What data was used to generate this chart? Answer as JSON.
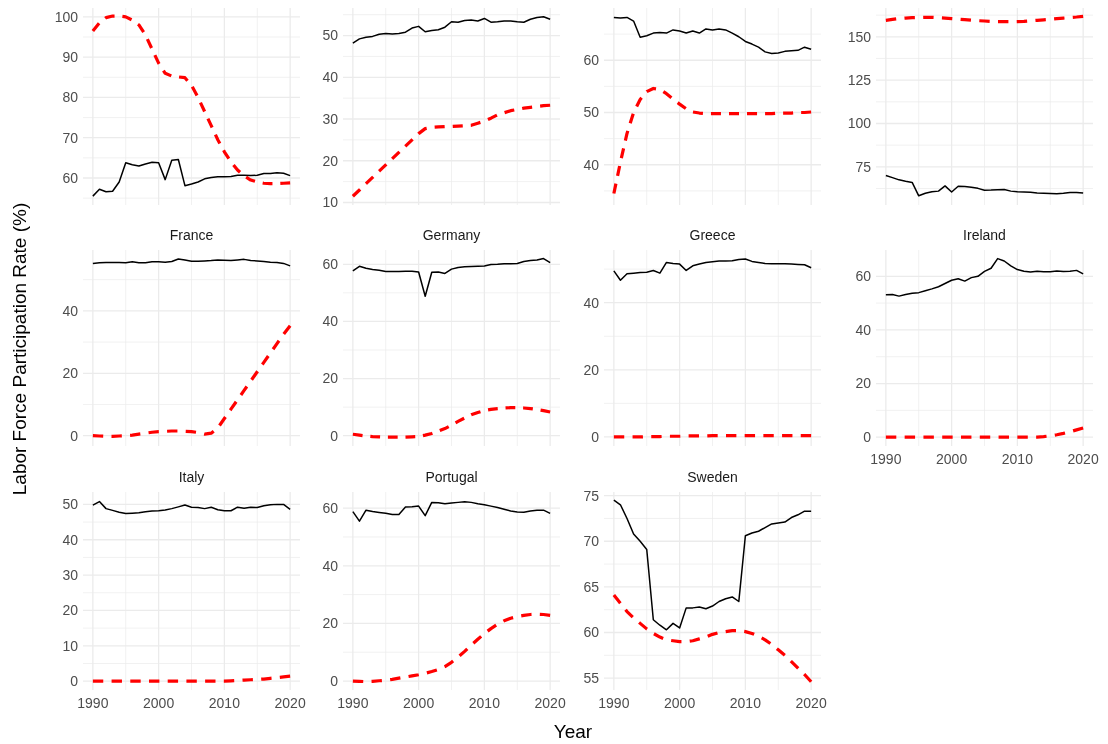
{
  "chart_data": [
    {
      "type": "line",
      "x": [
        1990,
        1991,
        1992,
        1993,
        1994,
        1995,
        1996,
        1997,
        1998,
        1999,
        2000,
        2001,
        2002,
        2003,
        2004,
        2005,
        2006,
        2007,
        2008,
        2009,
        2010,
        2011,
        2012,
        2013,
        2014,
        2015,
        2016,
        2017,
        2018,
        2019,
        2020
      ],
      "xlim": [
        1988.5,
        2021.5
      ],
      "xticks": [
        1990,
        {
          "value": 1995,
          "label": null
        },
        2000,
        {
          "value": 2005,
          "label": null
        },
        2010,
        {
          "value": 2015,
          "label": null
        },
        2020
      ],
      "ylim": [
        53.3,
        102.2
      ],
      "yticks": [
        {
          "value": 55,
          "label": null
        },
        60,
        {
          "value": 65,
          "label": null
        },
        70,
        {
          "value": 75,
          "label": null
        },
        80,
        {
          "value": 85,
          "label": null
        },
        90,
        {
          "value": 95,
          "label": null
        },
        100
      ],
      "grid": true,
      "tick_labels": "y",
      "ylabel": "Labor Force Participation Rate (%)",
      "series": [
        {
          "color": "#000000",
          "line_style": "solid",
          "values": [
            55.5,
            57.2,
            56.6,
            56.7,
            59,
            63.8,
            63.3,
            63,
            63.5,
            63.9,
            63.8,
            59.6,
            64.4,
            64.6,
            58.1,
            58.5,
            59,
            59.8,
            60.1,
            60.3,
            60.3,
            60.4,
            60.7,
            60.7,
            60.6,
            60.7,
            61.1,
            61.1,
            61.3,
            61.2,
            60.6
          ]
        },
        {
          "color": "#ff0000",
          "line_style": "dashed",
          "values": [
            96.5,
            98.5,
            99.8,
            100.2,
            100.2,
            100,
            99.2,
            98,
            95.5,
            92,
            88.5,
            86,
            85.3,
            85.1,
            84.9,
            83,
            80,
            76.5,
            73,
            69.5,
            66.5,
            64,
            62,
            60.5,
            59.5,
            59,
            58.7,
            58.6,
            58.6,
            58.7,
            58.8
          ]
        }
      ]
    },
    {
      "type": "line",
      "x": [
        1990,
        1991,
        1992,
        1993,
        1994,
        1995,
        1996,
        1997,
        1998,
        1999,
        2000,
        2001,
        2002,
        2003,
        2004,
        2005,
        2006,
        2007,
        2008,
        2009,
        2010,
        2011,
        2012,
        2013,
        2014,
        2015,
        2016,
        2017,
        2018,
        2019,
        2020
      ],
      "xlim": [
        1988.5,
        2021.5
      ],
      "xticks": [
        1990,
        {
          "value": 1995,
          "label": null
        },
        2000,
        {
          "value": 2005,
          "label": null
        },
        2010,
        {
          "value": 2015,
          "label": null
        },
        2020
      ],
      "ylim": [
        9.4,
        56.6
      ],
      "yticks": [
        10,
        {
          "value": 15,
          "label": null
        },
        20,
        {
          "value": 25,
          "label": null
        },
        30,
        {
          "value": 35,
          "label": null
        },
        40,
        {
          "value": 45,
          "label": null
        },
        50,
        {
          "value": 55,
          "label": null
        }
      ],
      "grid": true,
      "tick_labels": "y",
      "series": [
        {
          "color": "#000000",
          "line_style": "solid",
          "values": [
            48.2,
            49.2,
            49.6,
            49.8,
            50.3,
            50.5,
            50.4,
            50.5,
            50.8,
            51.8,
            52.2,
            50.9,
            51.2,
            51.4,
            52,
            53.3,
            53.2,
            53.6,
            53.7,
            53.5,
            54.1,
            53.2,
            53.3,
            53.5,
            53.5,
            53.3,
            53.2,
            53.9,
            54.3,
            54.5,
            53.9
          ]
        },
        {
          "color": "#ff0000",
          "line_style": "dashed",
          "values": [
            11.5,
            13,
            14.5,
            16,
            17.5,
            19,
            20.5,
            22,
            23.5,
            25,
            26.5,
            27.7,
            28,
            28.1,
            28.2,
            28.2,
            28.3,
            28.4,
            28.5,
            29,
            29.5,
            30.2,
            31,
            31.5,
            32,
            32.3,
            32.6,
            32.8,
            33,
            33.2,
            33.3
          ]
        }
      ]
    },
    {
      "type": "line",
      "x": [
        1990,
        1991,
        1992,
        1993,
        1994,
        1995,
        1996,
        1997,
        1998,
        1999,
        2000,
        2001,
        2002,
        2003,
        2004,
        2005,
        2006,
        2007,
        2008,
        2009,
        2010,
        2011,
        2012,
        2013,
        2014,
        2015,
        2016,
        2017,
        2018,
        2019,
        2020
      ],
      "xlim": [
        1988.5,
        2021.5
      ],
      "xticks": [
        1990,
        {
          "value": 1995,
          "label": null
        },
        2000,
        {
          "value": 2005,
          "label": null
        },
        2010,
        {
          "value": 2015,
          "label": null
        },
        2020
      ],
      "ylim": [
        32.3,
        70
      ],
      "yticks": [
        {
          "value": 35,
          "label": null
        },
        40,
        {
          "value": 45,
          "label": null
        },
        50,
        {
          "value": 55,
          "label": null
        },
        60,
        {
          "value": 65,
          "label": null
        }
      ],
      "grid": true,
      "tick_labels": "y",
      "series": [
        {
          "color": "#000000",
          "line_style": "solid",
          "values": [
            68.2,
            68.1,
            68.2,
            67.5,
            64.4,
            64.7,
            65.2,
            65.3,
            65.2,
            65.8,
            65.6,
            65.2,
            65.6,
            65.2,
            66,
            65.8,
            66,
            65.8,
            65.2,
            64.5,
            63.6,
            63.1,
            62.5,
            61.6,
            61.3,
            61.4,
            61.7,
            61.8,
            61.9,
            62.5,
            62.1
          ]
        },
        {
          "color": "#ff0000",
          "line_style": "dashed",
          "values": [
            34.5,
            40.5,
            46,
            50,
            52.5,
            54,
            54.6,
            54.4,
            53.6,
            52.6,
            51.6,
            50.7,
            50.1,
            49.9,
            49.8,
            49.8,
            49.8,
            49.8,
            49.8,
            49.8,
            49.8,
            49.8,
            49.8,
            49.8,
            49.8,
            49.9,
            49.9,
            49.9,
            50,
            50,
            50.1
          ]
        }
      ]
    },
    {
      "type": "line",
      "x": [
        1990,
        1991,
        1992,
        1993,
        1994,
        1995,
        1996,
        1997,
        1998,
        1999,
        2000,
        2001,
        2002,
        2003,
        2004,
        2005,
        2006,
        2007,
        2008,
        2009,
        2010,
        2011,
        2012,
        2013,
        2014,
        2015,
        2016,
        2017,
        2018,
        2019,
        2020
      ],
      "xlim": [
        1988.5,
        2021.5
      ],
      "xticks": [
        1990,
        {
          "value": 1995,
          "label": null
        },
        2000,
        {
          "value": 2005,
          "label": null
        },
        2010,
        {
          "value": 2015,
          "label": null
        },
        2020
      ],
      "ylim": [
        53,
        166.6
      ],
      "yticks": [
        {
          "value": 62.5,
          "label": null
        },
        75,
        {
          "value": 87.5,
          "label": null
        },
        100,
        {
          "value": 112.5,
          "label": null
        },
        125,
        {
          "value": 137.5,
          "label": null
        },
        150,
        {
          "value": 162.5,
          "label": null
        }
      ],
      "grid": true,
      "tick_labels": "y",
      "series": [
        {
          "color": "#000000",
          "line_style": "solid",
          "values": [
            70,
            68.8,
            67.5,
            66.7,
            66,
            58.3,
            59.8,
            60.7,
            61,
            64,
            60.5,
            63.8,
            63.7,
            63.2,
            62.6,
            61.5,
            61.6,
            61.8,
            61.9,
            61,
            60.6,
            60.5,
            60.3,
            59.9,
            59.8,
            59.7,
            59.5,
            59.8,
            60.2,
            60.2,
            59.9
          ]
        },
        {
          "color": "#ff0000",
          "line_style": "dashed",
          "values": [
            159.5,
            160,
            160.5,
            160.8,
            161,
            161.1,
            161.2,
            161.2,
            161,
            160.8,
            160.5,
            160.2,
            159.9,
            159.6,
            159.3,
            159.1,
            158.9,
            158.8,
            158.7,
            158.7,
            158.8,
            158.9,
            159.2,
            159.5,
            159.8,
            160.1,
            160.5,
            160.8,
            161.1,
            161.4,
            161.8
          ]
        }
      ]
    },
    {
      "type": "line",
      "title": "France",
      "x": [
        1990,
        1991,
        1992,
        1993,
        1994,
        1995,
        1996,
        1997,
        1998,
        1999,
        2000,
        2001,
        2002,
        2003,
        2004,
        2005,
        2006,
        2007,
        2008,
        2009,
        2010,
        2011,
        2012,
        2013,
        2014,
        2015,
        2016,
        2017,
        2018,
        2019,
        2020
      ],
      "xlim": [
        1988.5,
        2021.5
      ],
      "xticks": [
        1990,
        {
          "value": 1995,
          "label": null
        },
        2000,
        {
          "value": 2005,
          "label": null
        },
        2010,
        {
          "value": 2015,
          "label": null
        },
        2020
      ],
      "ylim": [
        -3.3,
        59.5
      ],
      "yticks": [
        0,
        {
          "value": 10,
          "label": null
        },
        20,
        {
          "value": 30,
          "label": null
        },
        40,
        {
          "value": 50,
          "label": null
        }
      ],
      "grid": true,
      "tick_labels": "y",
      "series": [
        {
          "color": "#000000",
          "line_style": "solid",
          "values": [
            55.2,
            55.4,
            55.5,
            55.5,
            55.5,
            55.4,
            55.7,
            55.4,
            55.4,
            55.7,
            55.7,
            55.6,
            55.8,
            56.6,
            56.3,
            55.9,
            55.9,
            56,
            56.1,
            56.3,
            56.2,
            56.1,
            56.3,
            56.5,
            56.1,
            56,
            55.8,
            55.6,
            55.5,
            55.2,
            54.4
          ]
        },
        {
          "color": "#ff0000",
          "line_style": "dashed",
          "values": [
            0,
            -0.1,
            -0.2,
            -0.2,
            -0.1,
            0,
            0.2,
            0.5,
            0.8,
            1.1,
            1.3,
            1.4,
            1.5,
            1.5,
            1.4,
            1.3,
            1,
            0.5,
            0.8,
            2.5,
            5.5,
            8.5,
            11.5,
            14.5,
            17.5,
            20.5,
            23.5,
            26.5,
            29.5,
            32.5,
            35.2
          ]
        }
      ]
    },
    {
      "type": "line",
      "title": "Germany",
      "x": [
        1990,
        1991,
        1992,
        1993,
        1994,
        1995,
        1996,
        1997,
        1998,
        1999,
        2000,
        2001,
        2002,
        2003,
        2004,
        2005,
        2006,
        2007,
        2008,
        2009,
        2010,
        2011,
        2012,
        2013,
        2014,
        2015,
        2016,
        2017,
        2018,
        2019,
        2020
      ],
      "xlim": [
        1988.5,
        2021.5
      ],
      "xticks": [
        1990,
        {
          "value": 1995,
          "label": null
        },
        2000,
        {
          "value": 2005,
          "label": null
        },
        2010,
        {
          "value": 2015,
          "label": null
        },
        2020
      ],
      "ylim": [
        -3.6,
        65
      ],
      "yticks": [
        0,
        {
          "value": 10,
          "label": null
        },
        20,
        {
          "value": 30,
          "label": null
        },
        40,
        {
          "value": 50,
          "label": null
        },
        60
      ],
      "grid": true,
      "tick_labels": "y",
      "series": [
        {
          "color": "#000000",
          "line_style": "solid",
          "values": [
            57.7,
            59.3,
            58.6,
            58.2,
            57.9,
            57.5,
            57.5,
            57.5,
            57.6,
            57.6,
            57.3,
            48.8,
            57.2,
            57.3,
            56.8,
            58.3,
            58.9,
            59.1,
            59.2,
            59.3,
            59.4,
            59.9,
            60,
            60.2,
            60.2,
            60.3,
            61,
            61.3,
            61.5,
            62,
            60.6
          ]
        },
        {
          "color": "#ff0000",
          "line_style": "dashed",
          "values": [
            0.5,
            0.2,
            -0.1,
            -0.3,
            -0.4,
            -0.5,
            -0.5,
            -0.5,
            -0.5,
            -0.4,
            -0.3,
            0.2,
            0.8,
            1.6,
            2.5,
            3.7,
            5,
            6.2,
            7.3,
            8.1,
            8.8,
            9.2,
            9.5,
            9.7,
            9.8,
            9.8,
            9.7,
            9.5,
            9.2,
            8.8,
            8.3
          ]
        }
      ]
    },
    {
      "type": "line",
      "title": "Greece",
      "x": [
        1990,
        1991,
        1992,
        1993,
        1994,
        1995,
        1996,
        1997,
        1998,
        1999,
        2000,
        2001,
        2002,
        2003,
        2004,
        2005,
        2006,
        2007,
        2008,
        2009,
        2010,
        2011,
        2012,
        2013,
        2014,
        2015,
        2016,
        2017,
        2018,
        2019,
        2020
      ],
      "xlim": [
        1988.5,
        2021.5
      ],
      "xticks": [
        1990,
        {
          "value": 1995,
          "label": null
        },
        2000,
        {
          "value": 2005,
          "label": null
        },
        2010,
        {
          "value": 2015,
          "label": null
        },
        2020
      ],
      "ylim": [
        -2.7,
        55.7
      ],
      "yticks": [
        0,
        {
          "value": 10,
          "label": null
        },
        20,
        {
          "value": 30,
          "label": null
        },
        40,
        {
          "value": 50,
          "label": null
        }
      ],
      "grid": true,
      "tick_labels": "y",
      "series": [
        {
          "color": "#000000",
          "line_style": "solid",
          "values": [
            49.5,
            46.7,
            48.6,
            48.8,
            49,
            49.1,
            49.6,
            48.8,
            52,
            51.7,
            51.5,
            49.6,
            51,
            51.5,
            52,
            52.2,
            52.4,
            52.4,
            52.5,
            52.9,
            53,
            52.3,
            52,
            51.7,
            51.6,
            51.6,
            51.6,
            51.5,
            51.4,
            51.3,
            50.4
          ]
        },
        {
          "color": "#ff0000",
          "line_style": "dashed",
          "values": [
            0,
            0,
            0,
            0,
            0,
            0.1,
            0.1,
            0.1,
            0.2,
            0.2,
            0.2,
            0.3,
            0.3,
            0.3,
            0.3,
            0.4,
            0.4,
            0.4,
            0.4,
            0.4,
            0.4,
            0.4,
            0.4,
            0.4,
            0.4,
            0.4,
            0.4,
            0.4,
            0.4,
            0.4,
            0.4
          ]
        }
      ]
    },
    {
      "type": "line",
      "title": "Ireland",
      "x": [
        1990,
        1991,
        1992,
        1993,
        1994,
        1995,
        1996,
        1997,
        1998,
        1999,
        2000,
        2001,
        2002,
        2003,
        2004,
        2005,
        2006,
        2007,
        2008,
        2009,
        2010,
        2011,
        2012,
        2013,
        2014,
        2015,
        2016,
        2017,
        2018,
        2019,
        2020
      ],
      "xlim": [
        1988.5,
        2021.5
      ],
      "xticks": [
        1990,
        {
          "value": 1995,
          "label": null
        },
        2000,
        {
          "value": 2005,
          "label": null
        },
        2010,
        {
          "value": 2015,
          "label": null
        },
        2020
      ],
      "ylim": [
        -3.3,
        69.8
      ],
      "yticks": [
        0,
        {
          "value": 10,
          "label": null
        },
        20,
        {
          "value": 30,
          "label": null
        },
        40,
        {
          "value": 50,
          "label": null
        },
        60
      ],
      "grid": true,
      "series": [
        {
          "color": "#000000",
          "line_style": "solid",
          "values": [
            53.1,
            53.2,
            52.6,
            53.2,
            53.7,
            53.9,
            54.6,
            55.3,
            56.1,
            57.3,
            58.5,
            59.1,
            58.2,
            59.5,
            60,
            61.8,
            63,
            66.6,
            65.7,
            63.9,
            62.5,
            61.9,
            61.6,
            61.9,
            61.7,
            61.7,
            62,
            61.8,
            61.9,
            62.2,
            60.9
          ]
        },
        {
          "color": "#ff0000",
          "line_style": "dashed",
          "values": [
            0,
            0,
            0,
            0,
            0,
            0,
            0,
            0,
            0,
            0,
            0,
            0,
            0,
            0,
            0,
            0,
            0,
            0,
            0,
            0,
            0,
            0,
            0,
            0,
            0.2,
            0.5,
            0.9,
            1.4,
            2,
            2.7,
            3.4
          ]
        }
      ]
    },
    {
      "type": "line",
      "title": "Italy",
      "x": [
        1990,
        1991,
        1992,
        1993,
        1994,
        1995,
        1996,
        1997,
        1998,
        1999,
        2000,
        2001,
        2002,
        2003,
        2004,
        2005,
        2006,
        2007,
        2008,
        2009,
        2010,
        2011,
        2012,
        2013,
        2014,
        2015,
        2016,
        2017,
        2018,
        2019,
        2020
      ],
      "xlim": [
        1988.5,
        2021.5
      ],
      "xticks": [
        1990,
        {
          "value": 1995,
          "label": null
        },
        2000,
        {
          "value": 2005,
          "label": null
        },
        2010,
        {
          "value": 2015,
          "label": null
        },
        2020
      ],
      "ylim": [
        -2.5,
        53.5
      ],
      "yticks": [
        0,
        {
          "value": 5,
          "label": null
        },
        10,
        {
          "value": 15,
          "label": null
        },
        20,
        {
          "value": 25,
          "label": null
        },
        30,
        {
          "value": 35,
          "label": null
        },
        40,
        {
          "value": 45,
          "label": null
        },
        50
      ],
      "grid": true,
      "series": [
        {
          "color": "#000000",
          "line_style": "solid",
          "values": [
            49.8,
            50.8,
            48.8,
            48.3,
            47.8,
            47.4,
            47.5,
            47.6,
            47.9,
            48.1,
            48.2,
            48.4,
            48.8,
            49.3,
            49.8,
            49.2,
            49.1,
            48.8,
            49.2,
            48.5,
            48.2,
            48.2,
            49.2,
            48.9,
            49.2,
            49.1,
            49.6,
            49.9,
            50,
            50,
            48.6
          ]
        },
        {
          "color": "#ff0000",
          "line_style": "dashed",
          "values": [
            0,
            0,
            0,
            0,
            0,
            0,
            0,
            0,
            0,
            0,
            0,
            0,
            0,
            0,
            0,
            0,
            0,
            0,
            0,
            0,
            0,
            0.1,
            0.2,
            0.3,
            0.4,
            0.5,
            0.6,
            0.8,
            1,
            1.2,
            1.4
          ]
        }
      ]
    },
    {
      "type": "line",
      "title": "Portugal",
      "xlabel": "Year",
      "x": [
        1990,
        1991,
        1992,
        1993,
        1994,
        1995,
        1996,
        1997,
        1998,
        1999,
        2000,
        2001,
        2002,
        2003,
        2004,
        2005,
        2006,
        2007,
        2008,
        2009,
        2010,
        2011,
        2012,
        2013,
        2014,
        2015,
        2016,
        2017,
        2018,
        2019,
        2020
      ],
      "xlim": [
        1988.5,
        2021.5
      ],
      "xticks": [
        1990,
        {
          "value": 1995,
          "label": null
        },
        2000,
        {
          "value": 2005,
          "label": null
        },
        2010,
        {
          "value": 2015,
          "label": null
        },
        2020
      ],
      "ylim": [
        -3.1,
        65.6
      ],
      "yticks": [
        0,
        {
          "value": 10,
          "label": null
        },
        20,
        {
          "value": 30,
          "label": null
        },
        40,
        {
          "value": 50,
          "label": null
        },
        60
      ],
      "grid": true,
      "series": [
        {
          "color": "#000000",
          "line_style": "solid",
          "values": [
            58.8,
            55.5,
            59.3,
            58.8,
            58.5,
            58.2,
            57.8,
            57.8,
            60.4,
            60.5,
            60.7,
            57.4,
            62,
            61.9,
            61.5,
            61.8,
            62,
            62.2,
            62,
            61.5,
            61.2,
            60.7,
            60.2,
            59.6,
            59,
            58.7,
            58.6,
            59,
            59.3,
            59.3,
            58.2
          ]
        },
        {
          "color": "#ff0000",
          "line_style": "dashed",
          "values": [
            0,
            -0.1,
            -0.2,
            -0.1,
            0.1,
            0.3,
            0.6,
            1,
            1.4,
            1.8,
            2.2,
            2.7,
            3.3,
            4,
            5,
            6.5,
            8.3,
            10.3,
            12.5,
            14.5,
            16.5,
            18.2,
            19.7,
            20.9,
            21.8,
            22.4,
            22.8,
            23.1,
            23.2,
            23.1,
            22.8
          ]
        }
      ]
    },
    {
      "type": "line",
      "title": "Sweden",
      "x": [
        1990,
        1991,
        1992,
        1993,
        1994,
        1995,
        1996,
        1997,
        1998,
        1999,
        2000,
        2001,
        2002,
        2003,
        2004,
        2005,
        2006,
        2007,
        2008,
        2009,
        2010,
        2011,
        2012,
        2013,
        2014,
        2015,
        2016,
        2017,
        2018,
        2019,
        2020
      ],
      "xlim": [
        1988.5,
        2021.5
      ],
      "xticks": [
        1990,
        {
          "value": 1995,
          "label": null
        },
        2000,
        {
          "value": 2005,
          "label": null
        },
        2010,
        {
          "value": 2015,
          "label": null
        },
        2020
      ],
      "ylim": [
        53.7,
        75.4
      ],
      "yticks": [
        55,
        {
          "value": 57.5,
          "label": null
        },
        60,
        {
          "value": 62.5,
          "label": null
        },
        65,
        {
          "value": 67.5,
          "label": null
        },
        70,
        {
          "value": 72.5,
          "label": null
        },
        75
      ],
      "grid": true,
      "series": [
        {
          "color": "#000000",
          "line_style": "solid",
          "values": [
            74.5,
            74,
            72.5,
            70.8,
            70,
            69.1,
            61.4,
            60.8,
            60.3,
            61,
            60.5,
            62.7,
            62.7,
            62.8,
            62.6,
            62.9,
            63.4,
            63.7,
            63.9,
            63.4,
            70.6,
            70.9,
            71.1,
            71.5,
            71.9,
            72,
            72.1,
            72.6,
            72.9,
            73.3,
            73.3
          ]
        },
        {
          "color": "#ff0000",
          "line_style": "dashed",
          "values": [
            64.1,
            63.2,
            62.3,
            61.6,
            61,
            60.4,
            59.9,
            59.5,
            59.2,
            59.1,
            59,
            59,
            59.1,
            59.3,
            59.5,
            59.8,
            60,
            60.1,
            60.2,
            60.2,
            60.1,
            59.9,
            59.6,
            59.2,
            58.7,
            58.1,
            57.5,
            56.8,
            56.1,
            55.4,
            54.6
          ]
        }
      ]
    }
  ]
}
